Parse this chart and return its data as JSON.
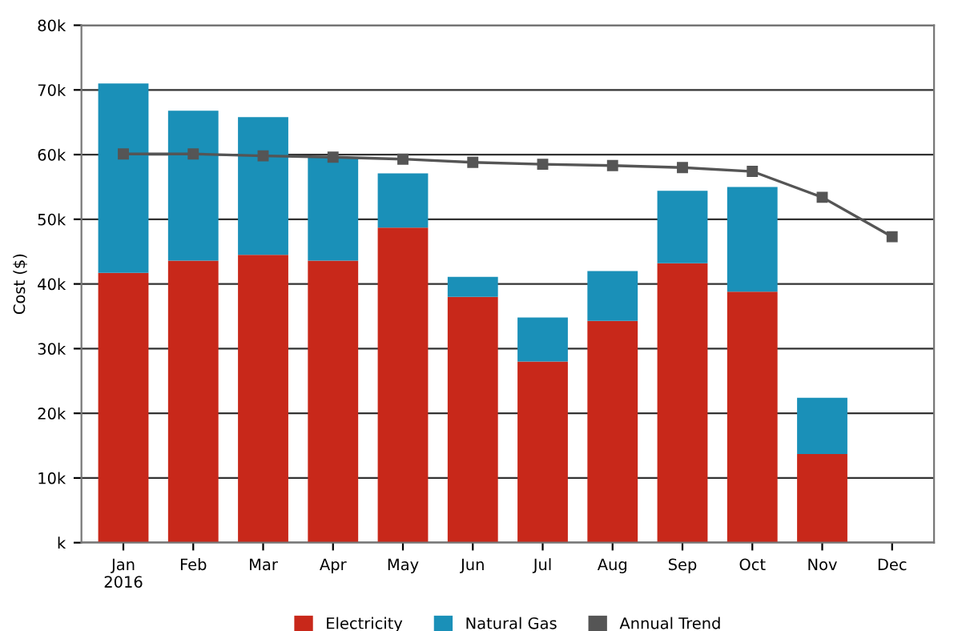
{
  "chart_data": {
    "type": "bar",
    "stacked": true,
    "ylabel": "Cost ($)",
    "categories": [
      "Jan\n2016",
      "Feb",
      "Mar",
      "Apr",
      "May",
      "Jun",
      "Jul",
      "Aug",
      "Sep",
      "Oct",
      "Nov",
      "Dec"
    ],
    "series": [
      {
        "name": "Electricity",
        "color": "#c8281a",
        "values": [
          41700,
          43600,
          44500,
          43600,
          48700,
          38000,
          28000,
          34300,
          43200,
          38800,
          13700,
          null
        ]
      },
      {
        "name": "Natural Gas",
        "color": "#1a90b8",
        "values": [
          29300,
          23200,
          21300,
          15900,
          8400,
          3100,
          6800,
          7700,
          11200,
          16200,
          8700,
          null
        ]
      },
      {
        "name": "Annual Trend",
        "type": "line",
        "color": "#555555",
        "marker": "square",
        "values": [
          60100,
          60100,
          59800,
          59600,
          59300,
          58800,
          58500,
          58300,
          58000,
          57400,
          53400,
          47300
        ]
      }
    ],
    "ylim": [
      0,
      80000
    ],
    "yticks": [
      {
        "value": 0,
        "label": "k"
      },
      {
        "value": 10000,
        "label": "10k"
      },
      {
        "value": 20000,
        "label": "20k"
      },
      {
        "value": 30000,
        "label": "30k"
      },
      {
        "value": 40000,
        "label": "40k"
      },
      {
        "value": 50000,
        "label": "50k"
      },
      {
        "value": 60000,
        "label": "60k"
      },
      {
        "value": 70000,
        "label": "70k"
      },
      {
        "value": 80000,
        "label": "80k"
      }
    ],
    "grid": "y",
    "legend": "bottom"
  }
}
